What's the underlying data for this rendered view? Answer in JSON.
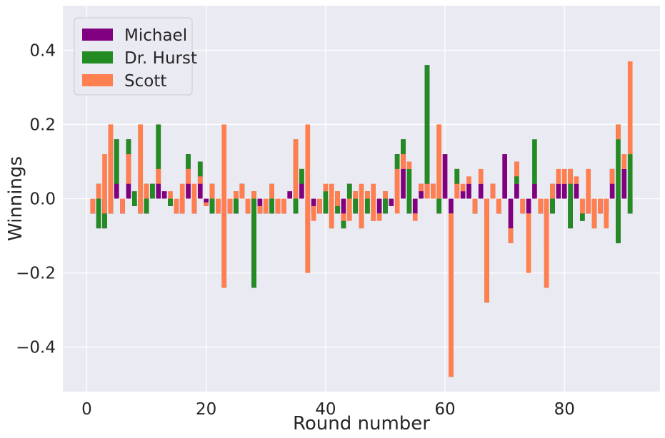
{
  "chart_data": {
    "type": "bar",
    "subtype": "stacked-diverging",
    "xlabel": "Round number",
    "ylabel": "Winnings",
    "xlim": [
      -4,
      96
    ],
    "ylim": [
      -0.52,
      0.52
    ],
    "xticks": [
      0,
      20,
      40,
      60,
      80
    ],
    "xtick_labels": [
      "0",
      "20",
      "40",
      "60",
      "80"
    ],
    "yticks": [
      -0.4,
      -0.2,
      0.0,
      0.2,
      0.4
    ],
    "ytick_labels": [
      "−0.4",
      "−0.2",
      "0.0",
      "0.2",
      "0.4"
    ],
    "grid": true,
    "legend_position": "top-left",
    "background": "#EAEAF2",
    "note": "Stacked bars: Michael at the base, Dr. Hurst stacked on Michael, Scott stacked on Michael + Dr. Hurst. Values are estimated per-round net winnings.",
    "x": [
      1,
      2,
      3,
      4,
      5,
      6,
      7,
      8,
      9,
      10,
      11,
      12,
      13,
      14,
      15,
      16,
      17,
      18,
      19,
      20,
      21,
      22,
      23,
      24,
      25,
      26,
      27,
      28,
      29,
      30,
      31,
      32,
      33,
      34,
      35,
      36,
      37,
      38,
      39,
      40,
      41,
      42,
      43,
      44,
      45,
      46,
      47,
      48,
      49,
      50,
      51,
      52,
      53,
      54,
      55,
      56,
      57,
      58,
      59,
      60,
      61,
      62,
      63,
      64,
      65,
      66,
      67,
      68,
      69,
      70,
      71,
      72,
      73,
      74,
      75,
      76,
      77,
      78,
      79,
      80,
      81,
      82,
      83,
      84,
      85,
      86,
      87,
      88,
      89,
      90,
      91
    ],
    "series": [
      {
        "name": "Michael",
        "color": "#800080",
        "values": [
          -0.04,
          -0.08,
          -0.08,
          -0.04,
          0.16,
          -0.04,
          0.16,
          -0.02,
          -0.04,
          -0.04,
          0.04,
          0.2,
          0.02,
          -0.02,
          -0.04,
          -0.04,
          0.12,
          -0.04,
          0.1,
          -0.02,
          -0.04,
          -0.04,
          -0.04,
          -0.04,
          -0.04,
          0.04,
          -0.04,
          -0.24,
          -0.04,
          -0.04,
          -0.04,
          -0.04,
          -0.04,
          0.02,
          -0.04,
          0.08,
          -0.12,
          -0.04,
          -0.04,
          -0.04,
          -0.04,
          -0.04,
          -0.08,
          0.04,
          -0.04,
          -0.04,
          -0.04,
          -0.02,
          -0.04,
          -0.04,
          -0.02,
          0.12,
          0.16,
          -0.04,
          -0.04,
          0.04,
          0.36,
          0.04,
          -0.04,
          0.12,
          -0.04,
          0.08,
          0.02,
          0.04,
          -0.04,
          0.04,
          -0.04,
          0.04,
          -0.04,
          0.12,
          -0.08,
          0.04,
          -0.04,
          -0.04,
          0.04,
          -0.04,
          -0.12,
          -0.04,
          0.04,
          0.04,
          -0.08,
          0.04,
          -0.06,
          -0.04,
          -0.04,
          -0.04,
          -0.04,
          0.08,
          -0.12,
          0.08,
          -0.04
        ]
      },
      {
        "name": "Dr. Hurst",
        "color": "#228B22",
        "values": [
          0.0,
          0.12,
          0.04,
          0.24,
          -0.12,
          0.0,
          -0.04,
          0.04,
          0.24,
          0.08,
          -0.04,
          -0.12,
          0.0,
          0.02,
          0.0,
          0.0,
          -0.04,
          0.0,
          -0.04,
          0.0,
          0.08,
          0.0,
          -0.2,
          0.0,
          0.06,
          -0.04,
          0.0,
          0.26,
          0.02,
          0.0,
          0.08,
          0.0,
          0.0,
          0.0,
          0.2,
          -0.04,
          -0.08,
          0.02,
          0.0,
          0.06,
          -0.04,
          0.06,
          0.02,
          -0.04,
          0.06,
          -0.04,
          0.06,
          -0.04,
          0.0,
          0.06,
          0.0,
          -0.04,
          -0.04,
          0.12,
          0.0,
          0.0,
          -0.32,
          0.0,
          0.24,
          0.0,
          -0.44,
          -0.04,
          0.0,
          0.0,
          0.04,
          0.0,
          -0.24,
          0.0,
          0.0,
          0.0,
          -0.04,
          0.06,
          0.0,
          0.0,
          0.12,
          0.0,
          -0.12,
          0.08,
          0.0,
          0.0,
          0.16,
          0.0,
          0.02,
          0.0,
          -0.04,
          0.0,
          0.04,
          0.0,
          0.32,
          0.0,
          0.16
        ]
      },
      {
        "name": "Scott",
        "color": "#FF7F50",
        "values": [
          0.04,
          -0.04,
          0.16,
          -0.24,
          0.0,
          0.04,
          -0.08,
          0.0,
          -0.24,
          -0.04,
          0.0,
          -0.04,
          0.0,
          0.02,
          0.04,
          0.08,
          -0.04,
          0.08,
          -0.02,
          0.01,
          -0.04,
          0.04,
          0.44,
          0.04,
          -0.02,
          0.04,
          0.04,
          -0.02,
          -0.02,
          0.04,
          -0.04,
          0.04,
          0.04,
          0.0,
          -0.16,
          0.0,
          0.4,
          -0.04,
          0.04,
          0.02,
          0.12,
          -0.04,
          0.02,
          -0.06,
          -0.02,
          0.12,
          -0.02,
          0.1,
          -0.02,
          -0.02,
          0.0,
          -0.12,
          -0.04,
          0.02,
          -0.02,
          -0.02,
          -0.04,
          -0.04,
          -0.2,
          0.0,
          0.44,
          -0.04,
          0.02,
          0.02,
          -0.04,
          0.04,
          0.28,
          -0.04,
          0.04,
          0.0,
          0.04,
          -0.04,
          0.04,
          -0.16,
          0.0,
          0.04,
          0.24,
          -0.04,
          0.04,
          0.04,
          -0.04,
          0.02,
          0.04,
          0.12,
          0.08,
          0.04,
          -0.08,
          -0.04,
          -0.04,
          0.04,
          0.25
        ]
      }
    ]
  }
}
